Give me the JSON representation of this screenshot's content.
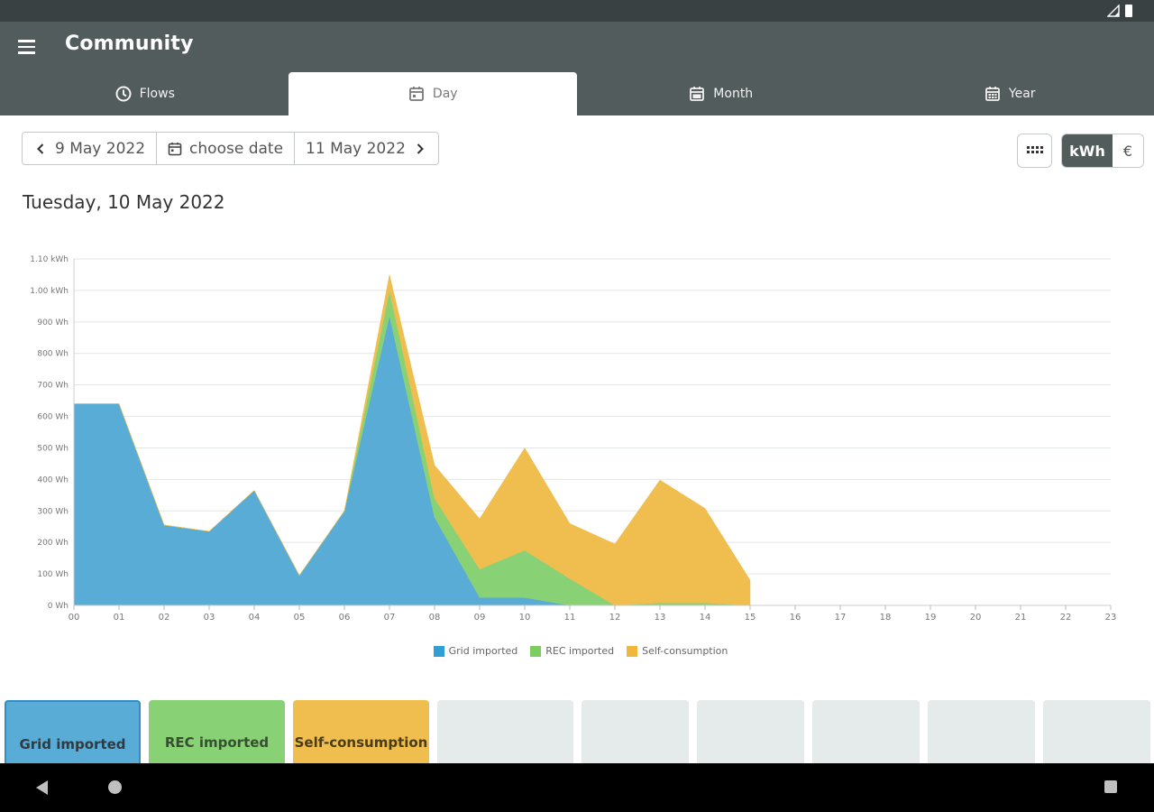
{
  "app": {
    "title": "Community"
  },
  "tabs": [
    {
      "label": "Flows",
      "icon": "clock-icon"
    },
    {
      "label": "Day",
      "icon": "calendar-day-icon",
      "active": true
    },
    {
      "label": "Month",
      "icon": "calendar-month-icon"
    },
    {
      "label": "Year",
      "icon": "calendar-year-icon"
    }
  ],
  "date_nav": {
    "prev": "9 May 2022",
    "choose": "choose date",
    "next": "11 May 2022"
  },
  "units": {
    "kwh": "kWh",
    "eur": "€"
  },
  "day_heading": "Tuesday, 10 May 2022",
  "colors": {
    "grid": "#58acd6",
    "rec": "#88d275",
    "self": "#efbe4f",
    "header": "#535c5d"
  },
  "chart_data": {
    "type": "area",
    "stacked": true,
    "x": [
      "00",
      "01",
      "02",
      "03",
      "04",
      "05",
      "06",
      "07",
      "08",
      "09",
      "10",
      "11",
      "12",
      "13",
      "14",
      "15",
      "16",
      "17",
      "18",
      "19",
      "20",
      "21",
      "22",
      "23"
    ],
    "yticks": [
      "0 Wh",
      "100 Wh",
      "200 Wh",
      "300 Wh",
      "400 Wh",
      "500 Wh",
      "600 Wh",
      "700 Wh",
      "800 Wh",
      "900 Wh",
      "1.00 kWh",
      "1.10 kWh"
    ],
    "ylim": [
      0,
      1100
    ],
    "yunit": "Wh",
    "grid": true,
    "legend_position": "bottom",
    "series": [
      {
        "name": "Grid imported",
        "color": "#58acd6",
        "values": [
          640,
          640,
          255,
          235,
          365,
          95,
          300,
          920,
          280,
          25,
          25,
          0,
          0,
          0,
          0,
          0,
          null,
          null,
          null,
          null,
          null,
          null,
          null,
          null
        ]
      },
      {
        "name": "REC imported",
        "color": "#88d275",
        "values": [
          0,
          0,
          0,
          0,
          0,
          0,
          0,
          80,
          60,
          90,
          150,
          85,
          0,
          8,
          8,
          0,
          null,
          null,
          null,
          null,
          null,
          null,
          null,
          null
        ]
      },
      {
        "name": "Self-consumption",
        "color": "#efbe4f",
        "values": [
          0,
          0,
          0,
          0,
          0,
          0,
          0,
          50,
          105,
          160,
          325,
          175,
          195,
          390,
          300,
          80,
          null,
          null,
          null,
          null,
          null,
          null,
          null,
          null
        ]
      }
    ]
  },
  "cards": [
    {
      "label": "Grid imported",
      "style": "grid"
    },
    {
      "label": "REC imported",
      "style": "rec"
    },
    {
      "label": "Self-consumption",
      "style": "self"
    },
    {
      "label": "",
      "style": "empty"
    },
    {
      "label": "",
      "style": "empty"
    },
    {
      "label": "",
      "style": "empty"
    },
    {
      "label": "",
      "style": "empty"
    },
    {
      "label": "",
      "style": "empty"
    },
    {
      "label": "",
      "style": "empty"
    }
  ]
}
